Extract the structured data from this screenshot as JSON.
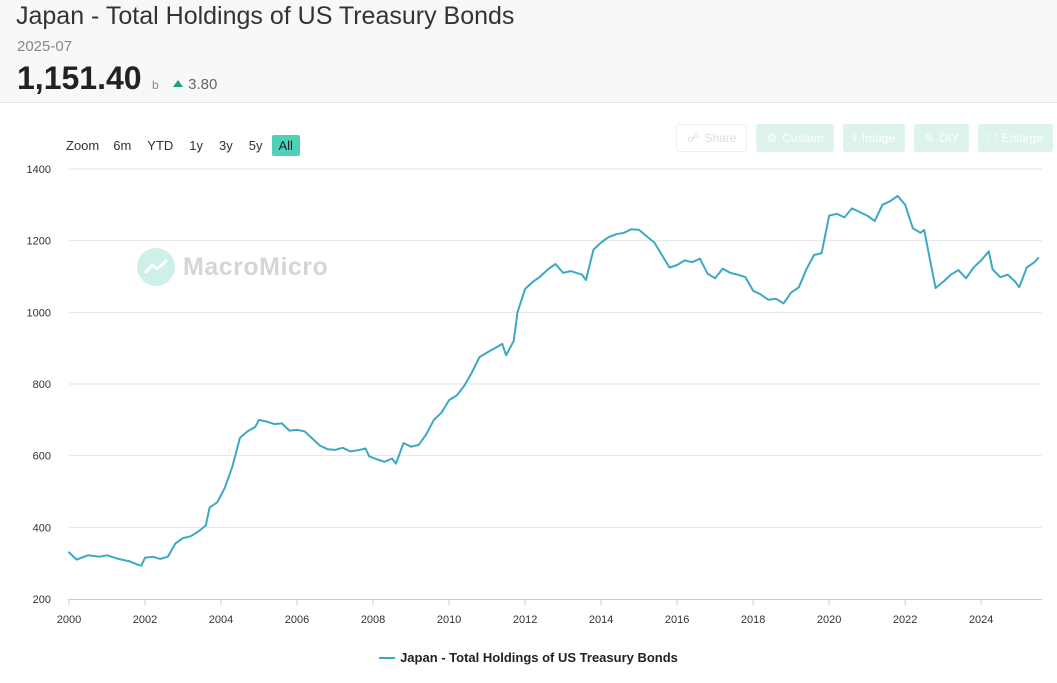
{
  "header": {
    "title": "Japan - Total Holdings of US Treasury Bonds",
    "date": "2025-07",
    "value": "1,151.40",
    "unit": "b",
    "change": "3.80"
  },
  "zoom": {
    "label": "Zoom",
    "options": [
      "6m",
      "YTD",
      "1y",
      "3y",
      "5y",
      "All"
    ],
    "active": "All"
  },
  "tools": {
    "share": "Share",
    "custom": "Custom",
    "image": "Image",
    "diy": "DIY",
    "enlarge": "Enlarge"
  },
  "watermark": "MacroMicro",
  "colors": {
    "line": "#3ca9c2",
    "accent": "#4fd1b7",
    "up": "#1aa37a"
  },
  "chart_data": {
    "type": "line",
    "title": "Japan - Total Holdings of US Treasury Bonds",
    "xlabel": "",
    "ylabel": "",
    "xlim": [
      2000,
      2025.6
    ],
    "ylim": [
      200,
      1400
    ],
    "x_ticks": [
      2000,
      2002,
      2004,
      2006,
      2008,
      2010,
      2012,
      2014,
      2016,
      2018,
      2020,
      2022,
      2024
    ],
    "y_ticks": [
      200,
      400,
      600,
      800,
      1000,
      1200,
      1400
    ],
    "grid": true,
    "legend_position": "bottom",
    "series": [
      {
        "name": "Japan - Total Holdings of US Treasury Bonds",
        "points": [
          [
            2000.0,
            330
          ],
          [
            2000.2,
            310
          ],
          [
            2000.5,
            322
          ],
          [
            2000.8,
            318
          ],
          [
            2001.0,
            322
          ],
          [
            2001.3,
            312
          ],
          [
            2001.6,
            305
          ],
          [
            2001.8,
            296
          ],
          [
            2001.9,
            293
          ],
          [
            2002.0,
            315
          ],
          [
            2002.2,
            318
          ],
          [
            2002.4,
            312
          ],
          [
            2002.6,
            318
          ],
          [
            2002.8,
            355
          ],
          [
            2003.0,
            370
          ],
          [
            2003.2,
            375
          ],
          [
            2003.4,
            388
          ],
          [
            2003.6,
            405
          ],
          [
            2003.7,
            455
          ],
          [
            2003.9,
            470
          ],
          [
            2004.1,
            510
          ],
          [
            2004.3,
            570
          ],
          [
            2004.5,
            650
          ],
          [
            2004.7,
            668
          ],
          [
            2004.9,
            680
          ],
          [
            2005.0,
            700
          ],
          [
            2005.2,
            695
          ],
          [
            2005.4,
            688
          ],
          [
            2005.6,
            690
          ],
          [
            2005.8,
            670
          ],
          [
            2006.0,
            672
          ],
          [
            2006.2,
            668
          ],
          [
            2006.4,
            648
          ],
          [
            2006.6,
            628
          ],
          [
            2006.8,
            618
          ],
          [
            2007.0,
            616
          ],
          [
            2007.2,
            622
          ],
          [
            2007.4,
            612
          ],
          [
            2007.6,
            615
          ],
          [
            2007.8,
            620
          ],
          [
            2007.9,
            598
          ],
          [
            2008.1,
            590
          ],
          [
            2008.3,
            583
          ],
          [
            2008.5,
            592
          ],
          [
            2008.6,
            578
          ],
          [
            2008.8,
            635
          ],
          [
            2009.0,
            625
          ],
          [
            2009.2,
            630
          ],
          [
            2009.4,
            660
          ],
          [
            2009.6,
            700
          ],
          [
            2009.8,
            720
          ],
          [
            2010.0,
            755
          ],
          [
            2010.2,
            768
          ],
          [
            2010.4,
            795
          ],
          [
            2010.6,
            832
          ],
          [
            2010.8,
            875
          ],
          [
            2011.0,
            888
          ],
          [
            2011.2,
            900
          ],
          [
            2011.4,
            912
          ],
          [
            2011.5,
            880
          ],
          [
            2011.7,
            920
          ],
          [
            2011.8,
            1000
          ],
          [
            2012.0,
            1065
          ],
          [
            2012.2,
            1085
          ],
          [
            2012.4,
            1100
          ],
          [
            2012.6,
            1120
          ],
          [
            2012.8,
            1135
          ],
          [
            2013.0,
            1110
          ],
          [
            2013.2,
            1115
          ],
          [
            2013.5,
            1105
          ],
          [
            2013.6,
            1090
          ],
          [
            2013.8,
            1175
          ],
          [
            2014.0,
            1195
          ],
          [
            2014.2,
            1210
          ],
          [
            2014.4,
            1218
          ],
          [
            2014.6,
            1222
          ],
          [
            2014.8,
            1232
          ],
          [
            2015.0,
            1230
          ],
          [
            2015.2,
            1212
          ],
          [
            2015.4,
            1195
          ],
          [
            2015.6,
            1160
          ],
          [
            2015.8,
            1125
          ],
          [
            2016.0,
            1132
          ],
          [
            2016.2,
            1145
          ],
          [
            2016.4,
            1140
          ],
          [
            2016.6,
            1150
          ],
          [
            2016.8,
            1108
          ],
          [
            2017.0,
            1095
          ],
          [
            2017.2,
            1122
          ],
          [
            2017.4,
            1110
          ],
          [
            2017.6,
            1105
          ],
          [
            2017.8,
            1098
          ],
          [
            2018.0,
            1060
          ],
          [
            2018.2,
            1050
          ],
          [
            2018.4,
            1035
          ],
          [
            2018.6,
            1038
          ],
          [
            2018.8,
            1025
          ],
          [
            2019.0,
            1055
          ],
          [
            2019.2,
            1070
          ],
          [
            2019.4,
            1120
          ],
          [
            2019.6,
            1160
          ],
          [
            2019.8,
            1165
          ],
          [
            2020.0,
            1270
          ],
          [
            2020.2,
            1275
          ],
          [
            2020.4,
            1265
          ],
          [
            2020.6,
            1290
          ],
          [
            2020.8,
            1280
          ],
          [
            2021.0,
            1270
          ],
          [
            2021.2,
            1255
          ],
          [
            2021.4,
            1300
          ],
          [
            2021.6,
            1310
          ],
          [
            2021.8,
            1325
          ],
          [
            2022.0,
            1300
          ],
          [
            2022.2,
            1235
          ],
          [
            2022.4,
            1222
          ],
          [
            2022.5,
            1230
          ],
          [
            2022.6,
            1175
          ],
          [
            2022.8,
            1068
          ],
          [
            2023.0,
            1085
          ],
          [
            2023.2,
            1105
          ],
          [
            2023.4,
            1118
          ],
          [
            2023.6,
            1095
          ],
          [
            2023.8,
            1125
          ],
          [
            2024.0,
            1145
          ],
          [
            2024.2,
            1170
          ],
          [
            2024.3,
            1120
          ],
          [
            2024.5,
            1098
          ],
          [
            2024.7,
            1105
          ],
          [
            2024.9,
            1085
          ],
          [
            2025.0,
            1070
          ],
          [
            2025.2,
            1125
          ],
          [
            2025.4,
            1140
          ],
          [
            2025.5,
            1151.4
          ]
        ]
      }
    ]
  }
}
